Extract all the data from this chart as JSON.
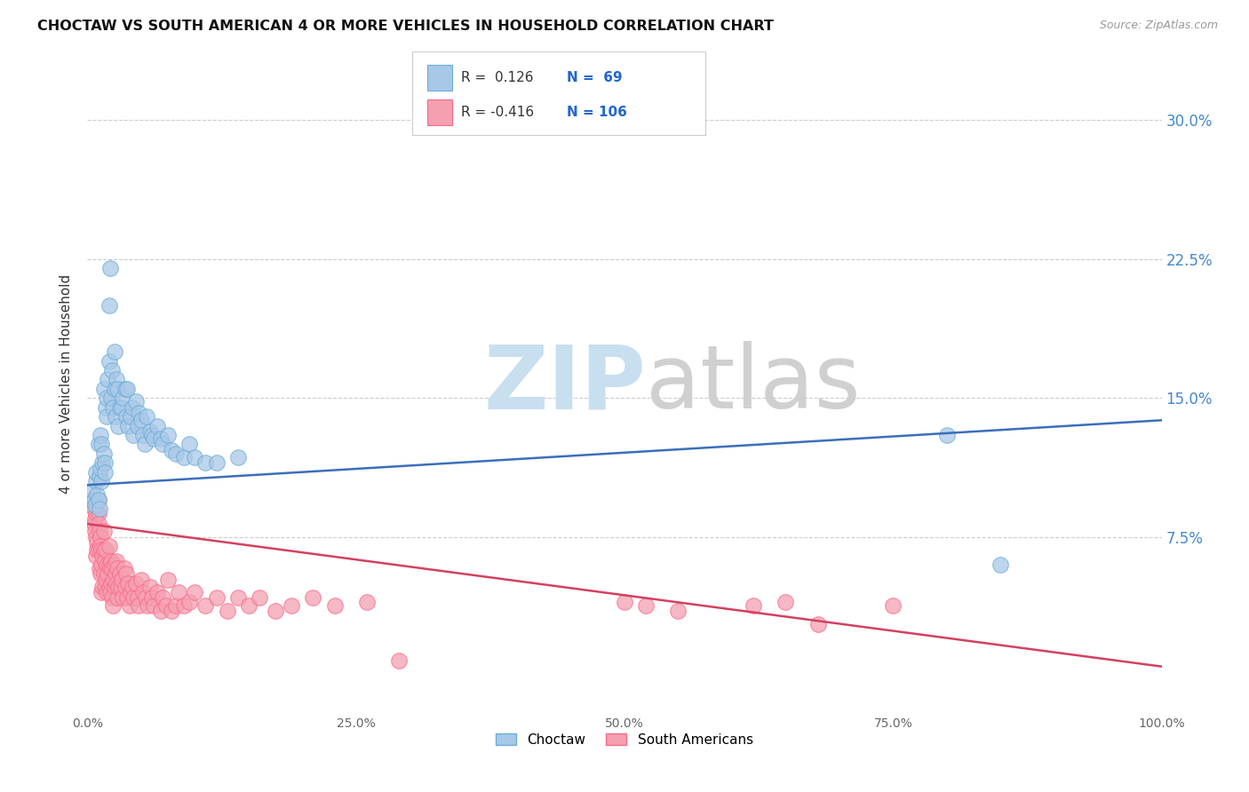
{
  "title": "CHOCTAW VS SOUTH AMERICAN 4 OR MORE VEHICLES IN HOUSEHOLD CORRELATION CHART",
  "source": "Source: ZipAtlas.com",
  "ylabel": "4 or more Vehicles in Household",
  "ytick_labels": [
    "7.5%",
    "15.0%",
    "22.5%",
    "30.0%"
  ],
  "ytick_values": [
    0.075,
    0.15,
    0.225,
    0.3
  ],
  "xtick_values": [
    0.0,
    0.25,
    0.5,
    0.75,
    1.0
  ],
  "xtick_labels": [
    "0.0%",
    "25.0%",
    "50.0%",
    "75.0%",
    "100.0%"
  ],
  "xlim": [
    0.0,
    1.0
  ],
  "ylim": [
    -0.02,
    0.335
  ],
  "choctaw_color": "#a8c8e8",
  "south_american_color": "#f4a0b0",
  "choctaw_edge_color": "#6baed6",
  "south_american_edge_color": "#fb6a8a",
  "choctaw_line_color": "#3a6fba",
  "south_american_line_color": "#d44060",
  "choctaw_R": 0.126,
  "choctaw_N": 69,
  "south_american_R": -0.416,
  "south_american_N": 106,
  "legend_label_choctaw": "Choctaw",
  "legend_label_south": "South Americans",
  "choctaw_line_start_y": 0.103,
  "choctaw_line_end_y": 0.138,
  "south_line_start_y": 0.082,
  "south_line_end_y": 0.005,
  "choctaw_x": [
    0.005,
    0.006,
    0.007,
    0.008,
    0.008,
    0.009,
    0.01,
    0.01,
    0.011,
    0.011,
    0.012,
    0.012,
    0.013,
    0.013,
    0.014,
    0.015,
    0.015,
    0.016,
    0.016,
    0.017,
    0.018,
    0.018,
    0.019,
    0.02,
    0.02,
    0.021,
    0.022,
    0.023,
    0.024,
    0.025,
    0.025,
    0.026,
    0.027,
    0.028,
    0.029,
    0.03,
    0.032,
    0.033,
    0.035,
    0.036,
    0.037,
    0.038,
    0.04,
    0.042,
    0.043,
    0.045,
    0.047,
    0.048,
    0.05,
    0.052,
    0.053,
    0.055,
    0.058,
    0.06,
    0.062,
    0.065,
    0.068,
    0.07,
    0.075,
    0.078,
    0.082,
    0.09,
    0.095,
    0.1,
    0.11,
    0.12,
    0.14,
    0.8,
    0.85
  ],
  "choctaw_y": [
    0.1,
    0.095,
    0.092,
    0.105,
    0.11,
    0.098,
    0.095,
    0.125,
    0.09,
    0.108,
    0.112,
    0.13,
    0.105,
    0.125,
    0.115,
    0.12,
    0.155,
    0.115,
    0.11,
    0.145,
    0.14,
    0.15,
    0.16,
    0.17,
    0.2,
    0.22,
    0.15,
    0.165,
    0.145,
    0.155,
    0.175,
    0.14,
    0.16,
    0.155,
    0.135,
    0.145,
    0.145,
    0.15,
    0.155,
    0.14,
    0.155,
    0.135,
    0.14,
    0.145,
    0.13,
    0.148,
    0.135,
    0.142,
    0.138,
    0.13,
    0.125,
    0.14,
    0.132,
    0.13,
    0.128,
    0.135,
    0.128,
    0.125,
    0.13,
    0.122,
    0.12,
    0.118,
    0.125,
    0.118,
    0.115,
    0.115,
    0.118,
    0.13,
    0.06
  ],
  "south_american_x": [
    0.005,
    0.006,
    0.006,
    0.007,
    0.007,
    0.008,
    0.008,
    0.008,
    0.009,
    0.009,
    0.01,
    0.01,
    0.01,
    0.01,
    0.011,
    0.011,
    0.012,
    0.012,
    0.012,
    0.013,
    0.013,
    0.013,
    0.014,
    0.014,
    0.015,
    0.015,
    0.015,
    0.016,
    0.016,
    0.017,
    0.017,
    0.018,
    0.018,
    0.019,
    0.02,
    0.02,
    0.02,
    0.021,
    0.021,
    0.022,
    0.022,
    0.023,
    0.023,
    0.024,
    0.024,
    0.025,
    0.025,
    0.026,
    0.027,
    0.027,
    0.028,
    0.028,
    0.029,
    0.03,
    0.031,
    0.032,
    0.033,
    0.034,
    0.035,
    0.036,
    0.037,
    0.038,
    0.039,
    0.04,
    0.042,
    0.043,
    0.045,
    0.047,
    0.048,
    0.05,
    0.052,
    0.054,
    0.056,
    0.058,
    0.06,
    0.062,
    0.065,
    0.068,
    0.07,
    0.073,
    0.075,
    0.078,
    0.082,
    0.085,
    0.09,
    0.095,
    0.1,
    0.11,
    0.12,
    0.13,
    0.14,
    0.15,
    0.16,
    0.175,
    0.19,
    0.21,
    0.23,
    0.26,
    0.29,
    0.5,
    0.52,
    0.55,
    0.62,
    0.65,
    0.68,
    0.75
  ],
  "south_american_y": [
    0.095,
    0.09,
    0.082,
    0.078,
    0.085,
    0.088,
    0.075,
    0.065,
    0.072,
    0.068,
    0.095,
    0.088,
    0.082,
    0.068,
    0.078,
    0.058,
    0.075,
    0.07,
    0.055,
    0.068,
    0.06,
    0.045,
    0.065,
    0.048,
    0.078,
    0.068,
    0.055,
    0.062,
    0.048,
    0.068,
    0.052,
    0.06,
    0.045,
    0.055,
    0.07,
    0.06,
    0.048,
    0.058,
    0.045,
    0.062,
    0.05,
    0.058,
    0.042,
    0.052,
    0.038,
    0.06,
    0.048,
    0.055,
    0.062,
    0.05,
    0.058,
    0.042,
    0.048,
    0.055,
    0.048,
    0.052,
    0.042,
    0.058,
    0.048,
    0.055,
    0.042,
    0.05,
    0.038,
    0.045,
    0.048,
    0.042,
    0.05,
    0.042,
    0.038,
    0.052,
    0.045,
    0.042,
    0.038,
    0.048,
    0.042,
    0.038,
    0.045,
    0.035,
    0.042,
    0.038,
    0.052,
    0.035,
    0.038,
    0.045,
    0.038,
    0.04,
    0.045,
    0.038,
    0.042,
    0.035,
    0.042,
    0.038,
    0.042,
    0.035,
    0.038,
    0.042,
    0.038,
    0.04,
    0.008,
    0.04,
    0.038,
    0.035,
    0.038,
    0.04,
    0.028,
    0.038
  ]
}
